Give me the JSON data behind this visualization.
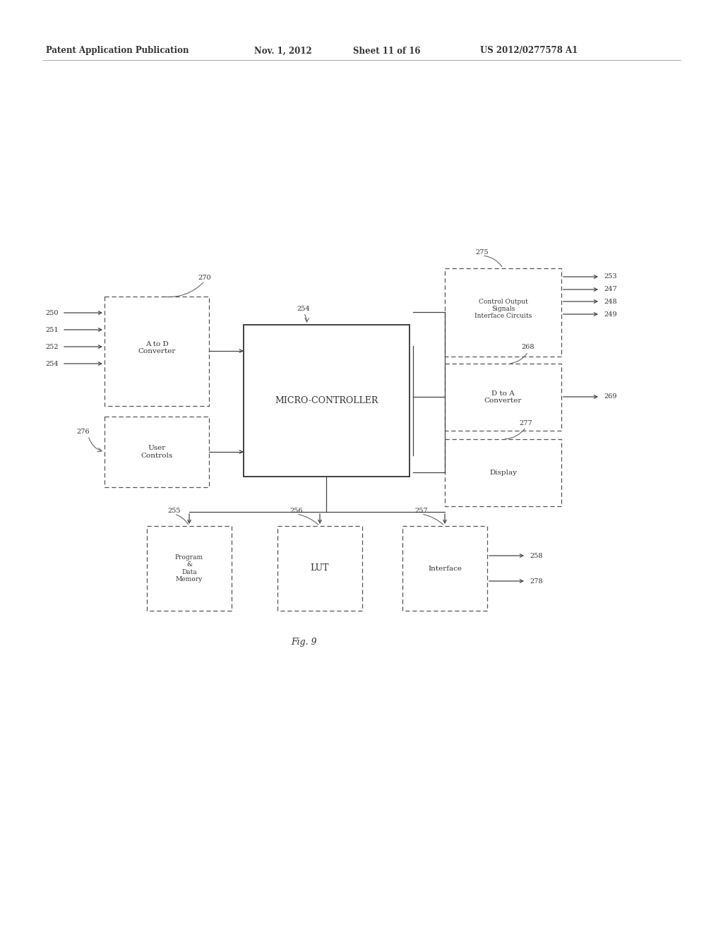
{
  "bg_color": "#ffffff",
  "header_text": "Patent Application Publication",
  "header_date": "Nov. 1, 2012",
  "header_sheet": "Sheet 11 of 16",
  "header_patent": "US 2012/0277578 A1",
  "fig_label": "Fig. 9",
  "line_color": "#444444",
  "text_color": "#333333"
}
